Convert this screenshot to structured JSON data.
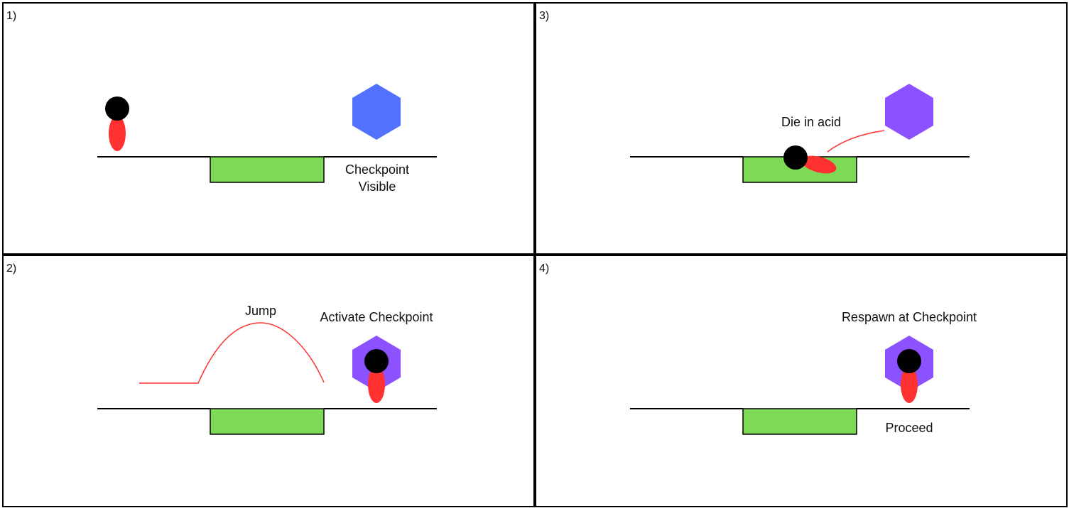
{
  "panels": [
    {
      "id": "p1",
      "number": "1)",
      "captions": [
        "Checkpoint",
        "Visible"
      ]
    },
    {
      "id": "p3",
      "number": "3)",
      "captions": [
        "Die in acid"
      ]
    },
    {
      "id": "p2",
      "number": "2)",
      "captions": [
        "Jump",
        "Activate Checkpoint"
      ]
    },
    {
      "id": "p4",
      "number": "4)",
      "captions": [
        "Respawn at Checkpoint",
        "Proceed"
      ]
    }
  ],
  "colors": {
    "acid": "#7ed957",
    "checkpoint_inactive": "#5271ff",
    "checkpoint_active": "#8c52ff",
    "player_body": "#ff3131",
    "player_head": "#000000",
    "trajectory": "#ff3131",
    "ground": "#000000"
  },
  "icons": {
    "player": "stick-figure-player-icon",
    "checkpoint": "hexagon-checkpoint-icon"
  }
}
